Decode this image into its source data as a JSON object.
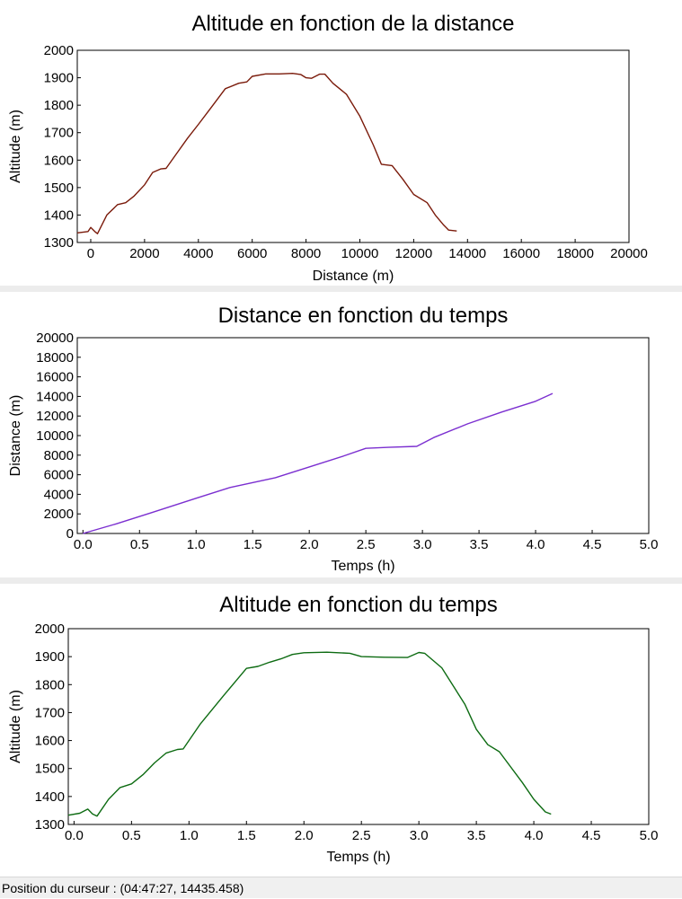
{
  "status_bar": {
    "text": "Position du curseur : (04:47:27, 14435.458)"
  },
  "chart_data": [
    {
      "type": "line",
      "title": "Altitude en fonction de la distance",
      "xlabel": "Distance (m)",
      "ylabel": "Altitude (m)",
      "xlim": [
        -500,
        20000
      ],
      "ylim": [
        1300,
        2000
      ],
      "xticks": [
        0,
        2000,
        4000,
        6000,
        8000,
        10000,
        12000,
        14000,
        16000,
        18000,
        20000
      ],
      "yticks": [
        1300,
        1400,
        1500,
        1600,
        1700,
        1800,
        1900,
        2000
      ],
      "color": "#7a1a0a",
      "series": [
        {
          "x": [
            -500,
            -100,
            0,
            150,
            250,
            600,
            1000,
            1300,
            1600,
            2000,
            2300,
            2600,
            2800,
            3200,
            3600,
            4000,
            4500,
            5000,
            5500,
            5800,
            6000,
            6500,
            7000,
            7500,
            7800,
            8000,
            8200,
            8500,
            8700,
            9000,
            9500,
            10000,
            10500,
            10800,
            11200,
            11600,
            12000,
            12500,
            12800,
            13100,
            13300,
            13600
          ],
          "y": [
            1335,
            1340,
            1355,
            1340,
            1332,
            1400,
            1438,
            1445,
            1468,
            1510,
            1555,
            1568,
            1570,
            1625,
            1680,
            1730,
            1795,
            1860,
            1880,
            1885,
            1905,
            1914,
            1914,
            1916,
            1912,
            1900,
            1898,
            1913,
            1913,
            1880,
            1840,
            1760,
            1655,
            1585,
            1580,
            1530,
            1475,
            1445,
            1400,
            1365,
            1345,
            1342
          ]
        }
      ]
    },
    {
      "type": "line",
      "title": "Distance en fonction du temps",
      "xlabel": "Temps (h)",
      "ylabel": "Distance (m)",
      "xlim": [
        -0.05,
        5.0
      ],
      "ylim": [
        0,
        20000
      ],
      "xticks": [
        "0.0",
        "0.5",
        "1.0",
        "1.5",
        "2.0",
        "2.5",
        "3.0",
        "3.5",
        "4.0",
        "4.5",
        "5.0"
      ],
      "yticks": [
        0,
        2000,
        4000,
        6000,
        8000,
        10000,
        12000,
        14000,
        16000,
        18000,
        20000
      ],
      "color": "#7b2fd0",
      "series": [
        {
          "x": [
            0.0,
            0.3,
            0.6,
            1.0,
            1.3,
            1.7,
            2.0,
            2.3,
            2.5,
            2.7,
            2.95,
            3.1,
            3.4,
            3.7,
            4.0,
            4.15
          ],
          "y": [
            0,
            1000,
            2100,
            3600,
            4700,
            5700,
            6800,
            7900,
            8700,
            8800,
            8900,
            9800,
            11200,
            12400,
            13500,
            14300
          ]
        }
      ]
    },
    {
      "type": "line",
      "title": "Altitude en fonction du temps",
      "xlabel": "Temps (h)",
      "ylabel": "Altitude (m)",
      "xlim": [
        -0.05,
        5.0
      ],
      "ylim": [
        1300,
        2000
      ],
      "xticks": [
        "0.0",
        "0.5",
        "1.0",
        "1.5",
        "2.0",
        "2.5",
        "3.0",
        "3.5",
        "4.0",
        "4.5",
        "5.0"
      ],
      "yticks": [
        1300,
        1400,
        1500,
        1600,
        1700,
        1800,
        1900,
        2000
      ],
      "color": "#0d6b12",
      "series": [
        {
          "x": [
            -0.05,
            0.05,
            0.12,
            0.16,
            0.2,
            0.3,
            0.4,
            0.5,
            0.6,
            0.7,
            0.8,
            0.9,
            0.95,
            1.1,
            1.3,
            1.5,
            1.6,
            1.7,
            1.8,
            1.9,
            2.0,
            2.2,
            2.4,
            2.5,
            2.7,
            2.9,
            3.0,
            3.05,
            3.2,
            3.4,
            3.5,
            3.6,
            3.7,
            3.9,
            4.0,
            4.1,
            4.15
          ],
          "y": [
            1333,
            1340,
            1355,
            1338,
            1330,
            1390,
            1432,
            1445,
            1478,
            1520,
            1555,
            1568,
            1570,
            1660,
            1760,
            1858,
            1865,
            1880,
            1892,
            1908,
            1914,
            1916,
            1912,
            1900,
            1898,
            1897,
            1915,
            1912,
            1860,
            1730,
            1640,
            1585,
            1560,
            1450,
            1390,
            1345,
            1337
          ]
        }
      ]
    }
  ]
}
